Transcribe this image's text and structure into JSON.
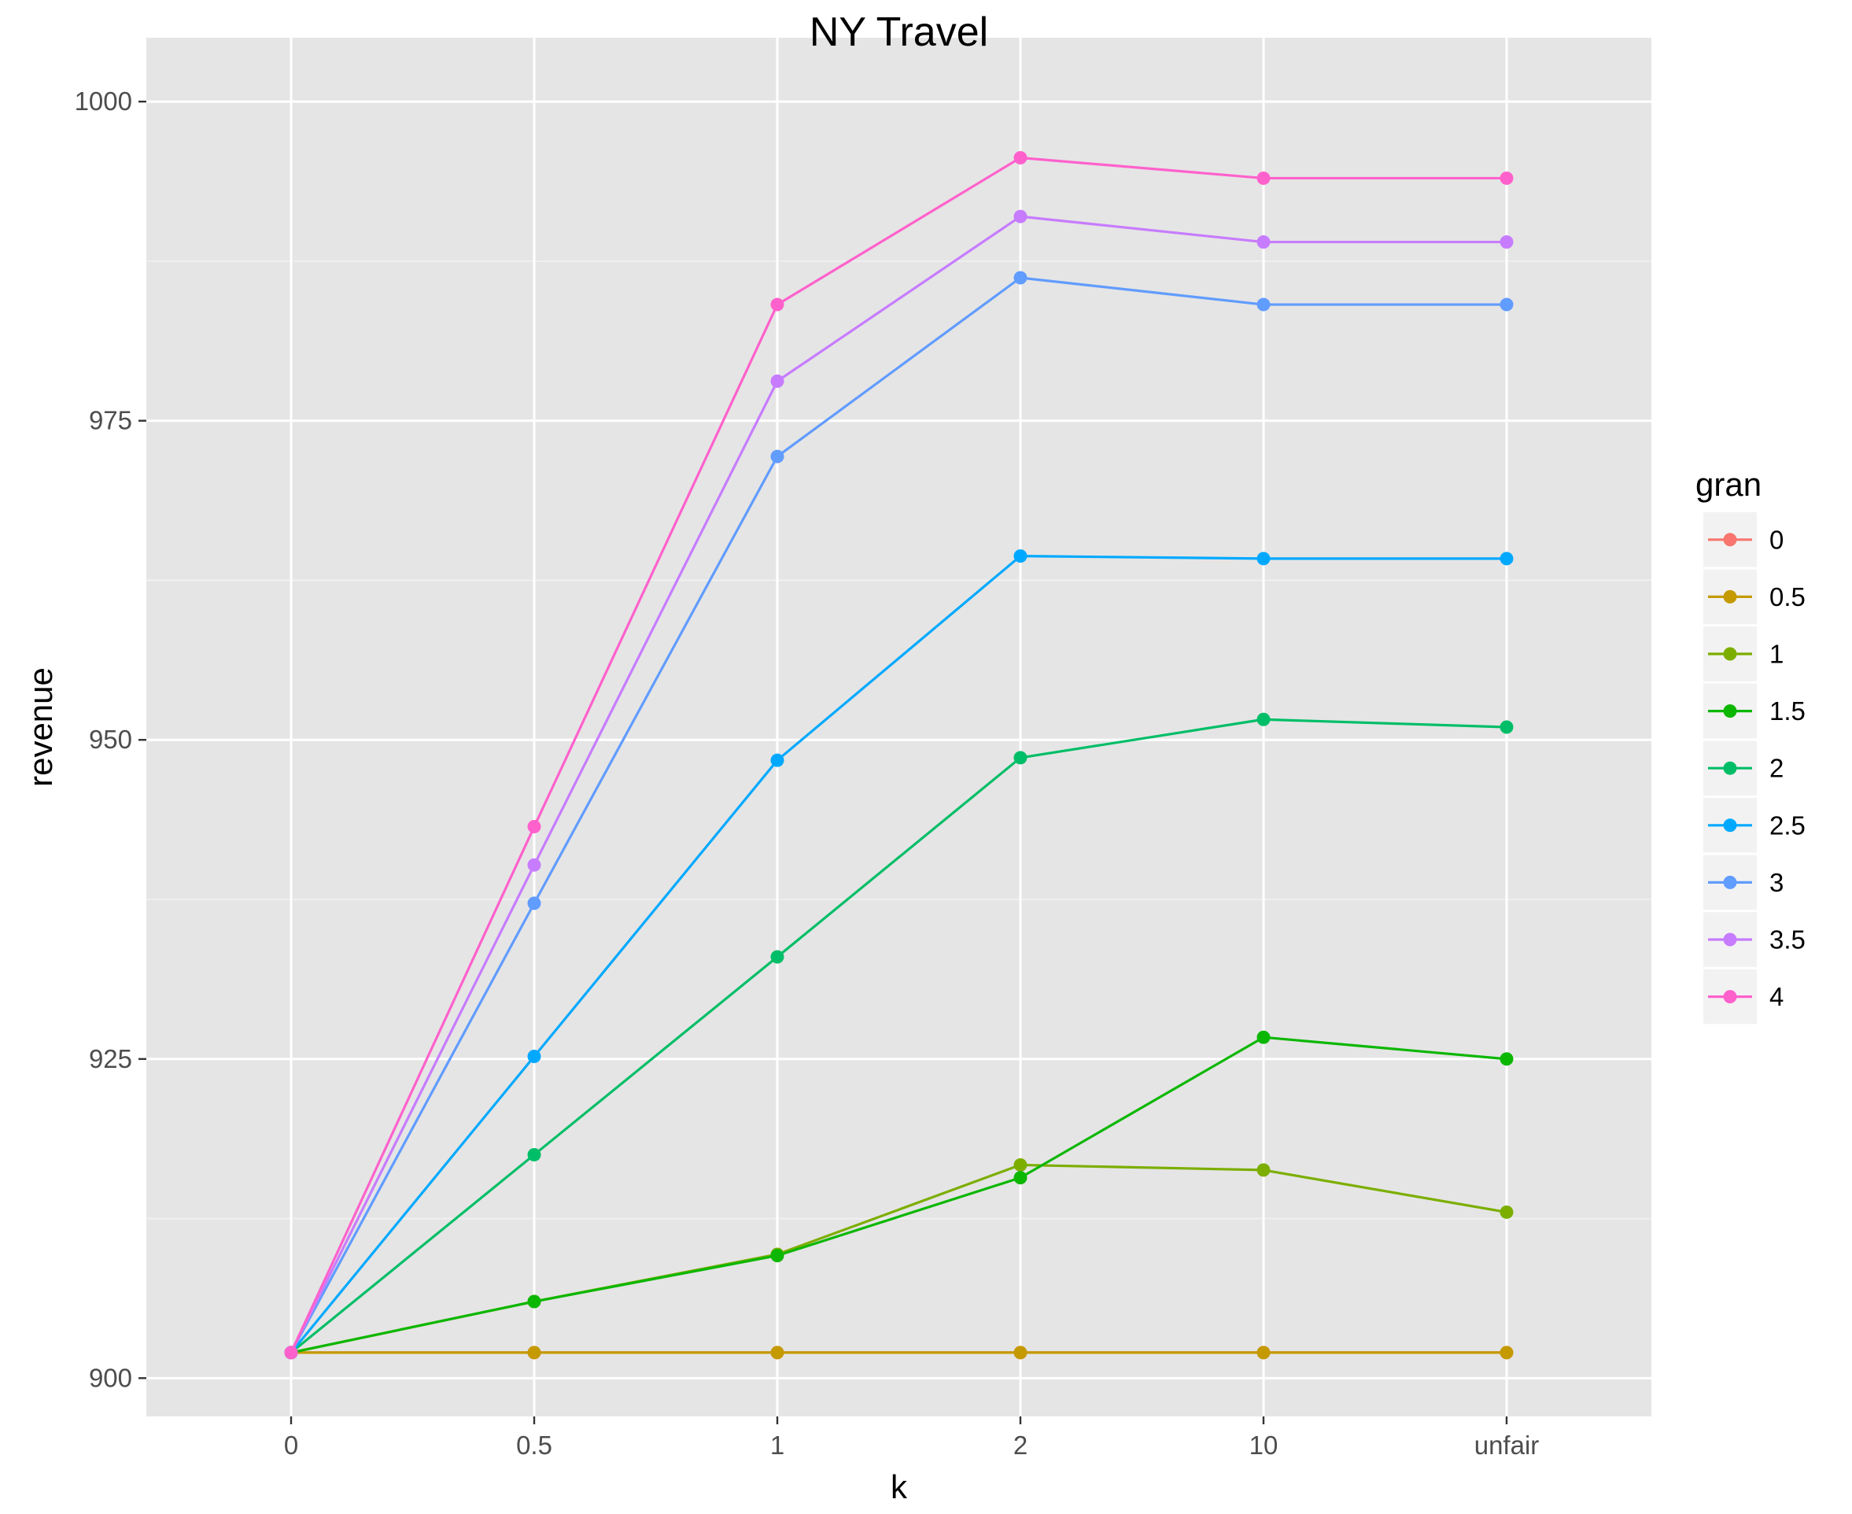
{
  "chart_data": {
    "type": "line",
    "title": "NY Travel",
    "xlabel": "k",
    "ylabel": "revenue",
    "categories": [
      "0",
      "0.5",
      "1",
      "2",
      "10",
      "unfair"
    ],
    "ylim": [
      897,
      1005
    ],
    "yticks": [
      900,
      925,
      950,
      975,
      1000
    ],
    "grid": true,
    "legend": {
      "title": "gran",
      "position": "right"
    },
    "series": [
      {
        "name": "0",
        "color": "#F8766D",
        "values": [
          902,
          902,
          902,
          902,
          902,
          902
        ]
      },
      {
        "name": "0.5",
        "color": "#C49A00",
        "values": [
          902,
          902,
          902,
          902,
          902,
          902
        ]
      },
      {
        "name": "1",
        "color": "#7CAE00",
        "values": [
          902,
          906,
          909.7,
          916.7,
          916.3,
          913
        ]
      },
      {
        "name": "1.5",
        "color": "#0CB702",
        "values": [
          902,
          906,
          909.6,
          915.7,
          926.7,
          925
        ]
      },
      {
        "name": "2",
        "color": "#00BE67",
        "values": [
          902,
          917.5,
          933,
          948.6,
          951.6,
          951
        ]
      },
      {
        "name": "2.5",
        "color": "#00A9FF",
        "values": [
          902,
          925.2,
          948.4,
          964.4,
          964.2,
          964.2
        ]
      },
      {
        "name": "3",
        "color": "#619CFF",
        "values": [
          902,
          937.2,
          972.2,
          986.2,
          984.1,
          984.1
        ]
      },
      {
        "name": "3.5",
        "color": "#C77CFF",
        "values": [
          902,
          940.2,
          978.1,
          991,
          989,
          989
        ]
      },
      {
        "name": "4",
        "color": "#FF61CC",
        "values": [
          902,
          943.2,
          984.1,
          995.6,
          994,
          994
        ]
      }
    ]
  }
}
